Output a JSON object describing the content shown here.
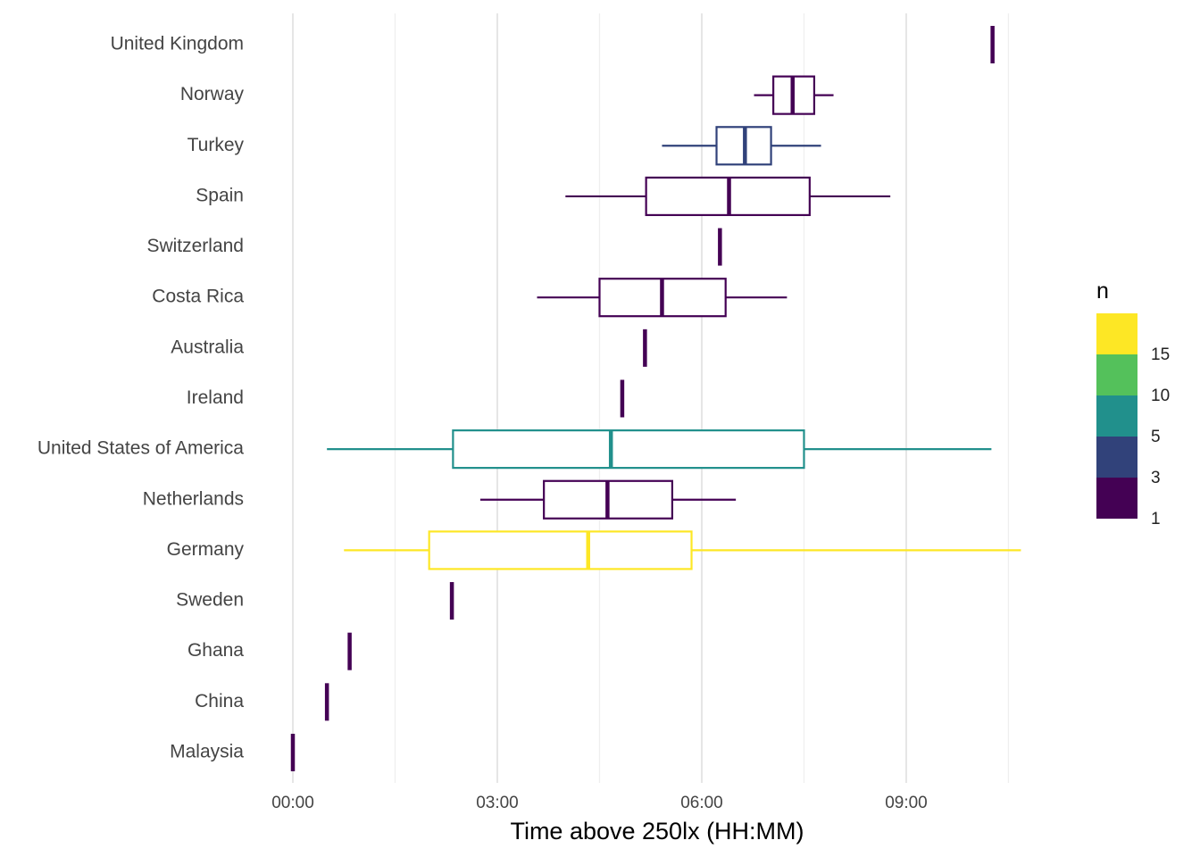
{
  "chart_data": {
    "type": "boxplot",
    "orientation": "horizontal",
    "title": "",
    "xlabel": "Time above 250lx (HH:MM)",
    "ylabel": "",
    "xlim_hours": [
      0,
      11
    ],
    "x_major_ticks": [
      {
        "hours": 0,
        "label": "00:00"
      },
      {
        "hours": 3,
        "label": "03:00"
      },
      {
        "hours": 6,
        "label": "06:00"
      },
      {
        "hours": 9,
        "label": "09:00"
      }
    ],
    "x_minor_gridlines_hours": [
      1.5,
      4.5,
      7.5,
      10.5
    ],
    "grid": "vertical only",
    "legend": {
      "title": "n",
      "position": "right",
      "type": "binned colorbar",
      "labels": [
        "1",
        "3",
        "5",
        "10",
        "15"
      ],
      "bins": [
        {
          "range": "1-3",
          "color": "#440154"
        },
        {
          "range": "3-5",
          "color": "#31427A"
        },
        {
          "range": "5-10",
          "color": "#21908C"
        },
        {
          "range": "10-15",
          "color": "#54C15B"
        },
        {
          "range": ">15",
          "color": "#FDE725"
        }
      ]
    },
    "categories": [
      "United Kingdom",
      "Norway",
      "Turkey",
      "Spain",
      "Switzerland",
      "Costa Rica",
      "Australia",
      "Ireland",
      "United States of America",
      "Netherlands",
      "Germany",
      "Sweden",
      "Ghana",
      "China",
      "Malaysia"
    ],
    "series": [
      {
        "name": "United Kingdom",
        "n_bin": "1-3",
        "color": "#440154",
        "min": "10:16",
        "q1": "10:16",
        "median": "10:16",
        "q3": "10:16",
        "max": "10:16"
      },
      {
        "name": "Norway",
        "n_bin": "1-3",
        "color": "#440154",
        "min": "06:46",
        "q1": "07:03",
        "median": "07:20",
        "q3": "07:39",
        "max": "07:56"
      },
      {
        "name": "Turkey",
        "n_bin": "3-5",
        "color": "#31427A",
        "min": "05:25",
        "q1": "06:13",
        "median": "06:38",
        "q3": "07:01",
        "max": "07:45"
      },
      {
        "name": "Spain",
        "n_bin": "1-3",
        "color": "#440154",
        "min": "04:00",
        "q1": "05:11",
        "median": "06:24",
        "q3": "07:35",
        "max": "08:46"
      },
      {
        "name": "Switzerland",
        "n_bin": "1-3",
        "color": "#440154",
        "min": "06:16",
        "q1": "06:16",
        "median": "06:16",
        "q3": "06:16",
        "max": "06:16"
      },
      {
        "name": "Costa Rica",
        "n_bin": "1-3",
        "color": "#440154",
        "min": "03:35",
        "q1": "04:30",
        "median": "05:25",
        "q3": "06:21",
        "max": "07:15"
      },
      {
        "name": "Australia",
        "n_bin": "1-3",
        "color": "#440154",
        "min": "05:10",
        "q1": "05:10",
        "median": "05:10",
        "q3": "05:10",
        "max": "05:10"
      },
      {
        "name": "Ireland",
        "n_bin": "1-3",
        "color": "#440154",
        "min": "04:50",
        "q1": "04:50",
        "median": "04:50",
        "q3": "04:50",
        "max": "04:50"
      },
      {
        "name": "United States of America",
        "n_bin": "5-10",
        "color": "#21908C",
        "min": "00:30",
        "q1": "02:21",
        "median": "04:40",
        "q3": "07:30",
        "max": "10:15"
      },
      {
        "name": "Netherlands",
        "n_bin": "1-3",
        "color": "#440154",
        "min": "02:45",
        "q1": "03:41",
        "median": "04:37",
        "q3": "05:34",
        "max": "06:30"
      },
      {
        "name": "Germany",
        "n_bin": ">15",
        "color": "#FDE725",
        "min": "00:45",
        "q1": "02:00",
        "median": "04:20",
        "q3": "05:51",
        "max": "10:41"
      },
      {
        "name": "Sweden",
        "n_bin": "1-3",
        "color": "#440154",
        "min": "02:20",
        "q1": "02:20",
        "median": "02:20",
        "q3": "02:20",
        "max": "02:20"
      },
      {
        "name": "Ghana",
        "n_bin": "1-3",
        "color": "#440154",
        "min": "00:50",
        "q1": "00:50",
        "median": "00:50",
        "q3": "00:50",
        "max": "00:50"
      },
      {
        "name": "China",
        "n_bin": "1-3",
        "color": "#440154",
        "min": "00:30",
        "q1": "00:30",
        "median": "00:30",
        "q3": "00:30",
        "max": "00:30"
      },
      {
        "name": "Malaysia",
        "n_bin": "1-3",
        "color": "#440154",
        "min": "00:00",
        "q1": "00:00",
        "median": "00:00",
        "q3": "00:00",
        "max": "00:00"
      }
    ]
  }
}
